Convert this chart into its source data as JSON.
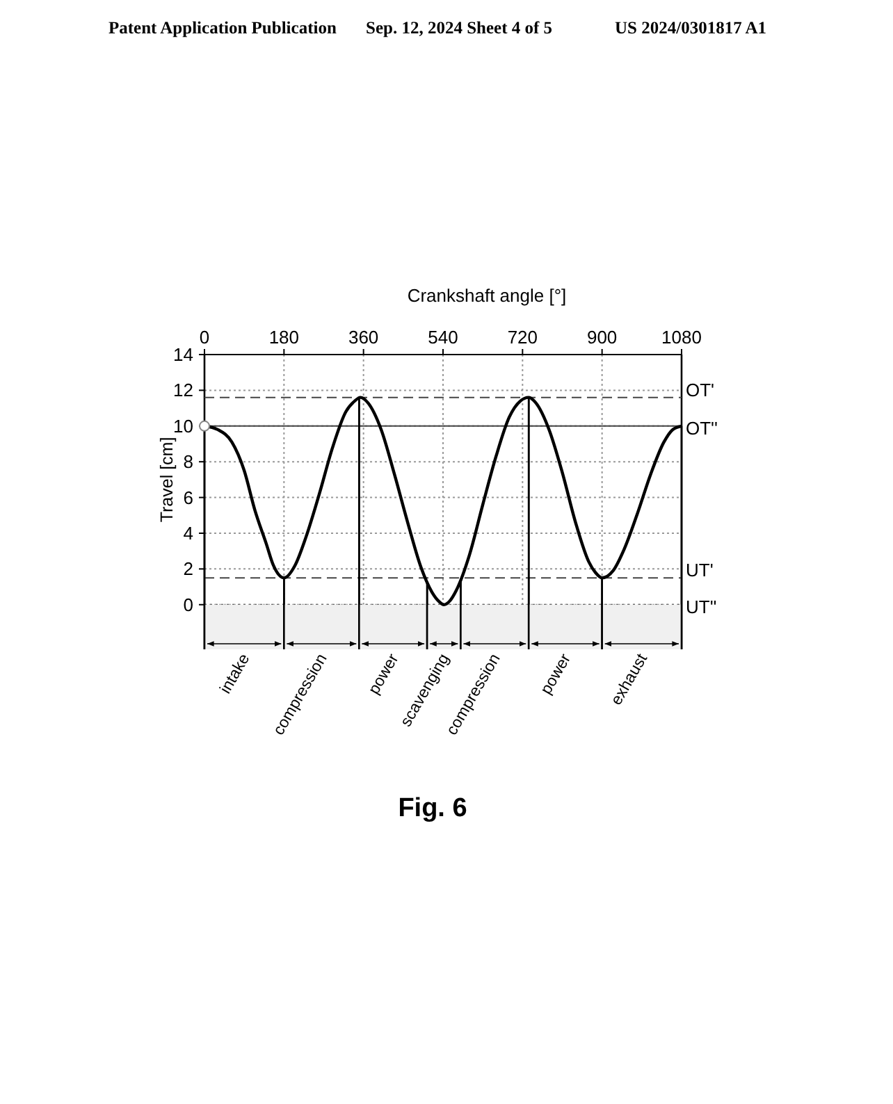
{
  "chart_data": {
    "type": "line",
    "title": "Fig. 6",
    "xlabel": "Crankshaft angle [°]",
    "ylabel": "Travel [cm]",
    "annotations": [
      "Patent Application Publication",
      "Sep. 12, 2024  Sheet 4 of 5",
      "US 2024/0301817 A1"
    ],
    "series": [
      {
        "color": "#000000",
        "x": [
          0,
          30,
          62,
          90,
          114,
          140,
          156,
          180,
          205,
          230,
          260,
          290,
          320,
          340,
          353,
          370,
          400,
          430,
          460,
          490,
          515,
          530,
          542,
          555,
          570,
          600,
          630,
          660,
          690,
          715,
          734,
          750,
          780,
          810,
          840,
          870,
          885,
          900,
          925,
          950,
          980,
          1010,
          1040,
          1060,
          1080
        ],
        "values": [
          10,
          9.8,
          9.1,
          7.5,
          5.3,
          3.4,
          2.2,
          1.5,
          2.2,
          3.8,
          6.2,
          8.8,
          10.8,
          11.4,
          11.6,
          11.3,
          9.8,
          7.3,
          4.6,
          2.1,
          0.7,
          0.2,
          0,
          0.2,
          0.8,
          2.8,
          5.6,
          8.3,
          10.5,
          11.4,
          11.6,
          11.3,
          9.8,
          7.4,
          4.6,
          2.4,
          1.8,
          1.5,
          1.9,
          3.1,
          5.1,
          7.3,
          9.1,
          9.8,
          10
        ]
      },
      {
        "type": "scatter",
        "color": "#888888",
        "marker": "circle",
        "x": [
          0
        ],
        "values": [
          10
        ]
      }
    ],
    "xlim": [
      0,
      1080
    ],
    "xticks": [
      0,
      180,
      360,
      540,
      720,
      900,
      1080
    ],
    "ylim": [
      -2.5,
      14
    ],
    "yticks": [
      0,
      2,
      4,
      6,
      8,
      10,
      12,
      14
    ],
    "grid": true,
    "ref_lines": [
      {
        "axis": "y",
        "value": 11.6,
        "label": "OT'",
        "line_style": "dashed"
      },
      {
        "axis": "y",
        "value": 10,
        "label": "OT''",
        "line_style": "solid"
      },
      {
        "axis": "y",
        "value": 1.5,
        "label": "UT'",
        "line_style": "dashed"
      },
      {
        "axis": "y",
        "value": 0,
        "label": "UT''",
        "line_style": "dotted"
      }
    ],
    "bands": [
      {
        "axis": "x",
        "from": 0,
        "to": 180,
        "label": "intake",
        "color": "#f0f0f0"
      },
      {
        "axis": "x",
        "from": 180,
        "to": 350,
        "label": "compression",
        "color": "#f0f0f0"
      },
      {
        "axis": "x",
        "from": 350,
        "to": 504,
        "label": "power",
        "color": "#f0f0f0"
      },
      {
        "axis": "x",
        "from": 504,
        "to": 580,
        "label": "scavenging",
        "color": "#f0f0f0"
      },
      {
        "axis": "x",
        "from": 580,
        "to": 734,
        "label": "compression",
        "color": "#f0f0f0"
      },
      {
        "axis": "x",
        "from": 734,
        "to": 900,
        "label": "power",
        "color": "#f0f0f0"
      },
      {
        "axis": "x",
        "from": 900,
        "to": 1080,
        "label": "exhaust",
        "color": "#f0f0f0"
      }
    ]
  }
}
